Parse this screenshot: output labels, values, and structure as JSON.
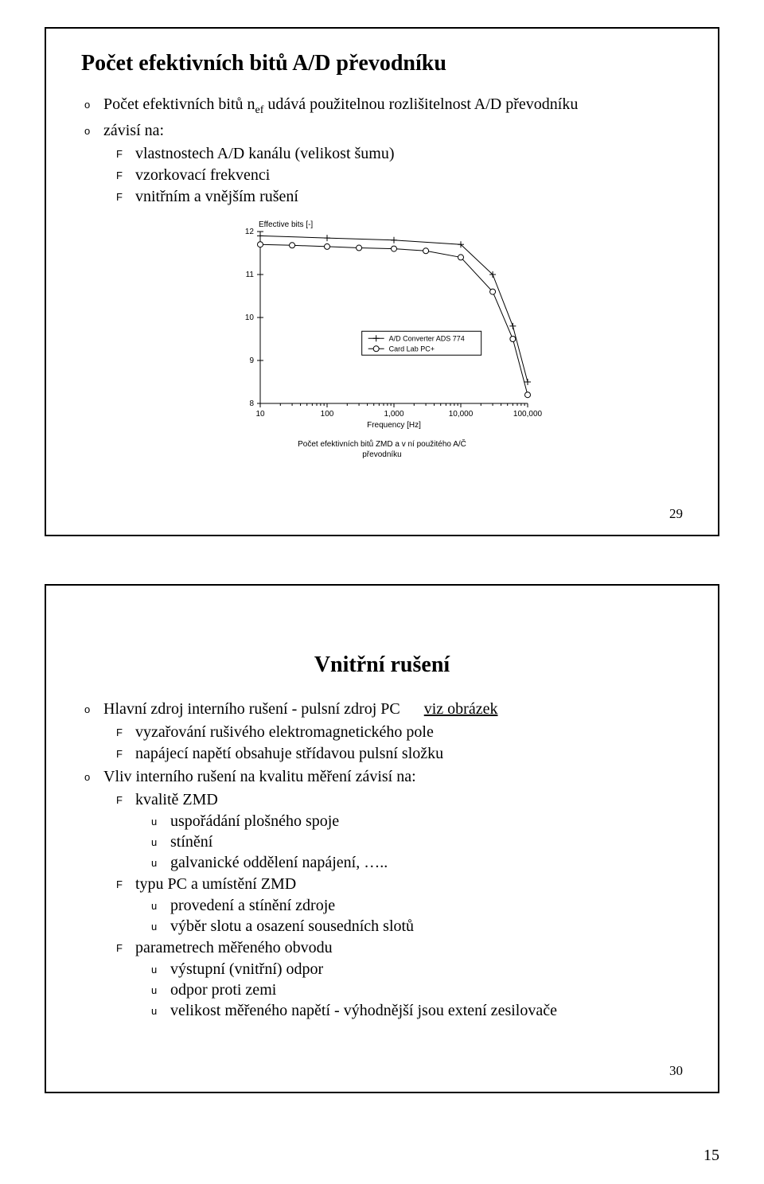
{
  "page_number": "15",
  "slide1": {
    "number": "29",
    "title": "Počet efektivních bitů A/D převodníku",
    "b1_pre": "Počet efektivních bitů  n",
    "b1_sub": "ef",
    "b1_post": "  udává použitelnou rozlišitelnost A/D převodníku",
    "b2": "závisí na:",
    "b2a": "vlastnostech A/D kanálu (velikost šumu)",
    "b2b": "vzorkovací frekvenci",
    "b2c": "vnitřním a vnějším rušení",
    "chart": {
      "type": "line",
      "ylabel": "Effective bits [-]",
      "xlabel": "Frequency [Hz]",
      "caption_l1": "Počet efektivních bitů ZMD a v ní použitého A/Č",
      "caption_l2": "převodníku",
      "legend_a": "A/D Converter ADS 774",
      "legend_b": "Card Lab PC+",
      "yticks": [
        "8",
        "9",
        "10",
        "11",
        "12"
      ],
      "ylim": [
        8,
        12
      ],
      "xticks": [
        "10",
        "100",
        "1,000",
        "10,000",
        "100,000"
      ],
      "xlog": [
        10,
        100,
        1000,
        10000,
        100000
      ],
      "series_a_plus": {
        "comment": "A/D Converter ADS 774 — plus markers",
        "x": [
          10,
          100,
          1000,
          10000,
          30000,
          60000,
          100000
        ],
        "y": [
          11.9,
          11.85,
          11.8,
          11.7,
          11.0,
          9.8,
          8.5
        ]
      },
      "series_b_circle": {
        "comment": "Card Lab PC+ — open circles",
        "x": [
          10,
          30,
          100,
          300,
          1000,
          3000,
          10000,
          30000,
          60000,
          100000
        ],
        "y": [
          11.7,
          11.68,
          11.65,
          11.62,
          11.6,
          11.55,
          11.4,
          10.6,
          9.5,
          8.2
        ]
      },
      "colors": {
        "axis": "#000000",
        "series": "#000000",
        "background": "#ffffff"
      },
      "line_width": 1
    }
  },
  "slide2": {
    "number": "30",
    "title": "Vnitřní rušení",
    "b1": "Hlavní zdroj interního rušení - pulsní zdroj PC",
    "b1_link": "viz obrázek",
    "b1a": "vyzařování rušivého elektromagnetického pole",
    "b1b": "napájecí napětí obsahuje střídavou pulsní složku",
    "b2": "Vliv interního rušení na kvalitu měření závisí na:",
    "b2a": "kvalitě ZMD",
    "b2a1": "uspořádání plošného spoje",
    "b2a2": "stínění",
    "b2a3": "galvanické oddělení napájení, …..",
    "b2b": "typu PC a umístění ZMD",
    "b2b1": "provedení a stínění zdroje",
    "b2b2": "výběr slotu a osazení sousedních slotů",
    "b2c": "parametrech měřeného obvodu",
    "b2c1": "výstupní (vnitřní) odpor",
    "b2c2": "odpor proti zemi",
    "b2c3": "velikost měřeného napětí - výhodnější jsou extení zesilovače"
  }
}
